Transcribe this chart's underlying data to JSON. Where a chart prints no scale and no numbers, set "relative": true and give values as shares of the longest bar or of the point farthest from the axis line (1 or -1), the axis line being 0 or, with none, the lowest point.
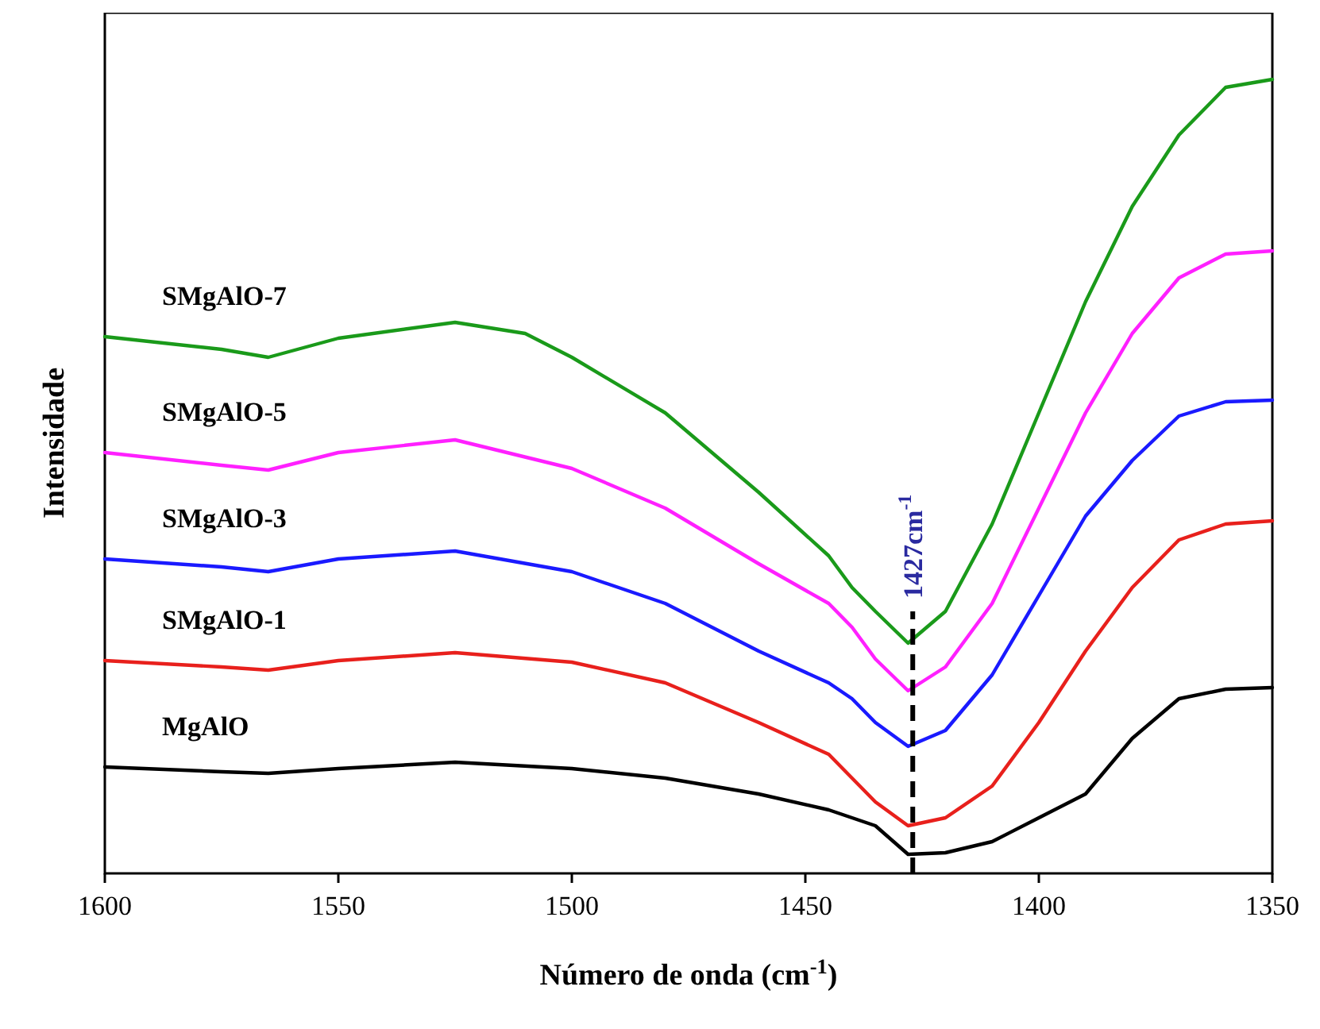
{
  "chart_data": {
    "type": "line",
    "relative": true,
    "xlabel": "Número de onda (cm$^{-1}$)",
    "ylabel": "Intensidade",
    "xlim": [
      1600,
      1350
    ],
    "xticks": [
      1600,
      1550,
      1500,
      1450,
      1400,
      1350
    ],
    "grid": false,
    "line_style": "solid",
    "marker": "none",
    "ref_lines": [
      {
        "axis": "x",
        "value": 1427,
        "label": "1427cm$^{-1}$",
        "color": "#000000",
        "line_style": "dashed"
      }
    ],
    "series": [
      {
        "name": "MgAlO",
        "color": "#000000",
        "x": [
          1600,
          1575,
          1565,
          1550,
          1525,
          1500,
          1480,
          1460,
          1445,
          1435,
          1428,
          1420,
          1410,
          1400,
          1390,
          1380,
          1370,
          1360,
          1350
        ],
        "values": [
          0.134,
          0.128,
          0.126,
          0.132,
          0.14,
          0.132,
          0.12,
          0.1,
          0.08,
          0.06,
          0.024,
          0.026,
          0.04,
          0.07,
          0.1,
          0.17,
          0.22,
          0.232,
          0.234
        ]
      },
      {
        "name": "SMgAlO-1",
        "color": "#e8201c",
        "x": [
          1600,
          1575,
          1565,
          1550,
          1525,
          1500,
          1480,
          1460,
          1445,
          1440,
          1435,
          1428,
          1420,
          1410,
          1400,
          1390,
          1380,
          1370,
          1360,
          1350
        ],
        "values": [
          0.268,
          0.26,
          0.256,
          0.268,
          0.278,
          0.266,
          0.24,
          0.19,
          0.15,
          0.12,
          0.09,
          0.06,
          0.07,
          0.11,
          0.19,
          0.28,
          0.36,
          0.42,
          0.44,
          0.444
        ]
      },
      {
        "name": "SMgAlO-3",
        "color": "#1a1aff",
        "x": [
          1600,
          1575,
          1565,
          1550,
          1525,
          1500,
          1480,
          1460,
          1445,
          1440,
          1435,
          1428,
          1420,
          1410,
          1400,
          1390,
          1380,
          1370,
          1360,
          1350
        ],
        "values": [
          0.396,
          0.386,
          0.38,
          0.396,
          0.406,
          0.38,
          0.34,
          0.28,
          0.24,
          0.22,
          0.19,
          0.16,
          0.18,
          0.25,
          0.35,
          0.45,
          0.52,
          0.576,
          0.594,
          0.596
        ]
      },
      {
        "name": "SMgAlO-5",
        "color": "#ff20ff",
        "x": [
          1600,
          1575,
          1565,
          1550,
          1525,
          1500,
          1480,
          1460,
          1445,
          1440,
          1435,
          1428,
          1420,
          1410,
          1400,
          1390,
          1380,
          1370,
          1360,
          1350
        ],
        "values": [
          0.53,
          0.514,
          0.508,
          0.53,
          0.546,
          0.51,
          0.46,
          0.39,
          0.34,
          0.31,
          0.27,
          0.23,
          0.26,
          0.34,
          0.46,
          0.58,
          0.68,
          0.75,
          0.78,
          0.784
        ]
      },
      {
        "name": "SMgAlO-7",
        "color": "#1a9a1a",
        "x": [
          1600,
          1575,
          1565,
          1550,
          1525,
          1510,
          1500,
          1480,
          1460,
          1445,
          1440,
          1435,
          1428,
          1420,
          1410,
          1400,
          1390,
          1380,
          1370,
          1360,
          1350
        ],
        "values": [
          0.676,
          0.66,
          0.65,
          0.674,
          0.694,
          0.68,
          0.65,
          0.58,
          0.48,
          0.4,
          0.36,
          0.33,
          0.29,
          0.33,
          0.44,
          0.58,
          0.72,
          0.84,
          0.93,
          0.99,
          1
        ]
      }
    ]
  }
}
